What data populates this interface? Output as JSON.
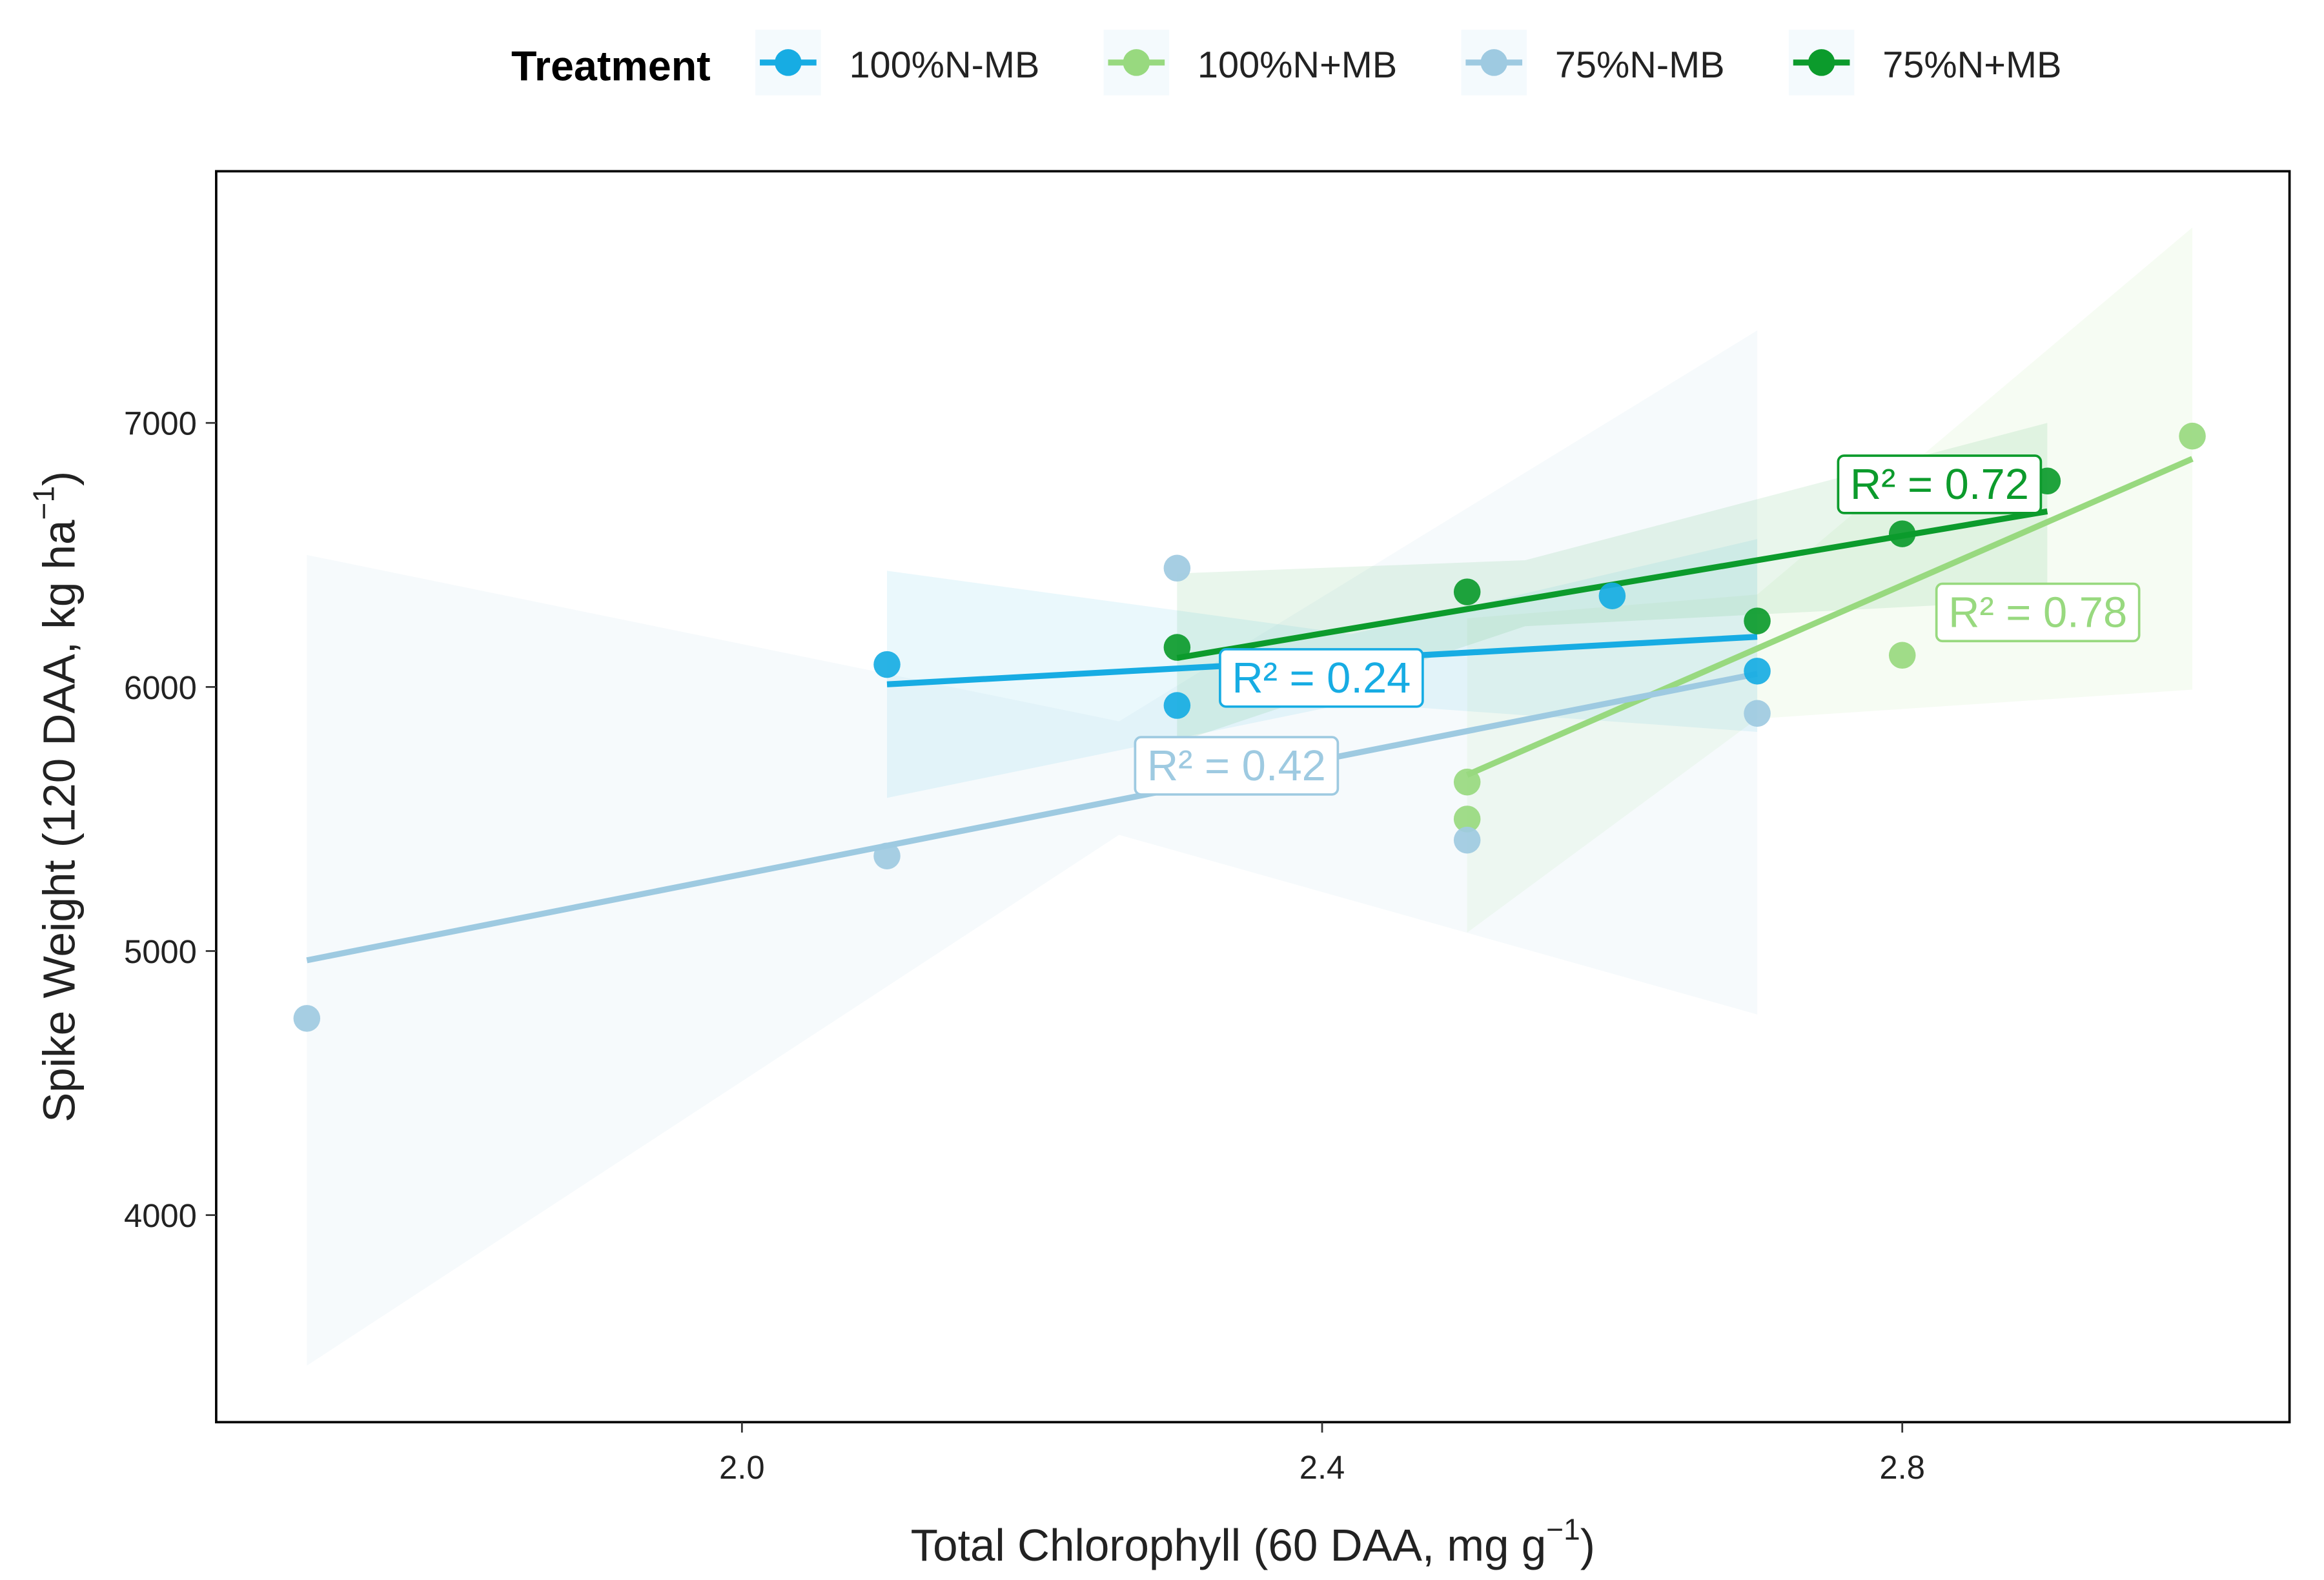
{
  "chart_data": {
    "type": "scatter",
    "legend_title": "Treatment",
    "legend_position": "top",
    "x_label": {
      "text": "Total Chlorophyll (60 DAA, mg g",
      "superscript": "−1",
      "close": ")"
    },
    "y_label": {
      "text": "Spike Weight (120 DAA, kg ha",
      "superscript": "−1",
      "close": ")"
    },
    "xlim": [
      1.6375,
      3.067
    ],
    "ylim": [
      3216,
      7953
    ],
    "xticks": [
      {
        "value": 2.0,
        "label": "2.0"
      },
      2.4,
      2.8
    ],
    "yticks": [
      4000,
      5000,
      6000,
      7000
    ],
    "series": [
      {
        "name": "100%N-MB",
        "color": "#17ace3",
        "x": [
          2.1,
          2.3,
          2.6,
          2.7
        ],
        "values": [
          6085,
          5930,
          6345,
          6060
        ],
        "fit": {
          "x": [
            2.1,
            2.7
          ],
          "y": [
            6010,
            6190
          ]
        },
        "band": {
          "x": [
            2.1,
            2.42,
            2.7
          ],
          "upper": [
            6440,
            6200,
            6560
          ],
          "lower": [
            5580,
            5940,
            5830
          ]
        },
        "r2_label": "R² = 0.24"
      },
      {
        "name": "100%N+MB",
        "color": "#98d97f",
        "x": [
          2.5,
          2.5,
          2.8,
          3.0
        ],
        "values": [
          5640,
          5500,
          6120,
          6950
        ],
        "fit": {
          "x": [
            2.5,
            3.0
          ],
          "y": [
            5667,
            6864
          ]
        },
        "band": {
          "x": [
            2.5,
            2.7,
            3.0
          ],
          "upper": [
            6260,
            6350,
            7740
          ],
          "lower": [
            5070,
            5880,
            5990
          ]
        },
        "r2_label": "R² = 0.78"
      },
      {
        "name": "75%N-MB",
        "color": "#9ecae1",
        "x": [
          1.7,
          2.1,
          2.3,
          2.5,
          2.7
        ],
        "values": [
          4745,
          5360,
          6450,
          5420,
          5900
        ],
        "fit": {
          "x": [
            1.7,
            2.7
          ],
          "y": [
            4965,
            6050
          ]
        },
        "band": {
          "x": [
            1.7,
            2.26,
            2.7
          ],
          "upper": [
            6500,
            5870,
            7350
          ],
          "lower": [
            3430,
            5440,
            4760
          ]
        },
        "r2_label": "R² = 0.42"
      },
      {
        "name": "75%N+MB",
        "color": "#0c9b2c",
        "x": [
          2.3,
          2.5,
          2.7,
          2.8,
          2.9
        ],
        "values": [
          6150,
          6360,
          6250,
          6580,
          6780
        ],
        "fit": {
          "x": [
            2.3,
            2.9
          ],
          "y": [
            6110,
            6665
          ]
        },
        "band": {
          "x": [
            2.3,
            2.54,
            2.9
          ],
          "upper": [
            6430,
            6480,
            7000
          ],
          "lower": [
            5790,
            6230,
            6330
          ]
        },
        "r2_label": "R² = 0.72"
      }
    ]
  }
}
